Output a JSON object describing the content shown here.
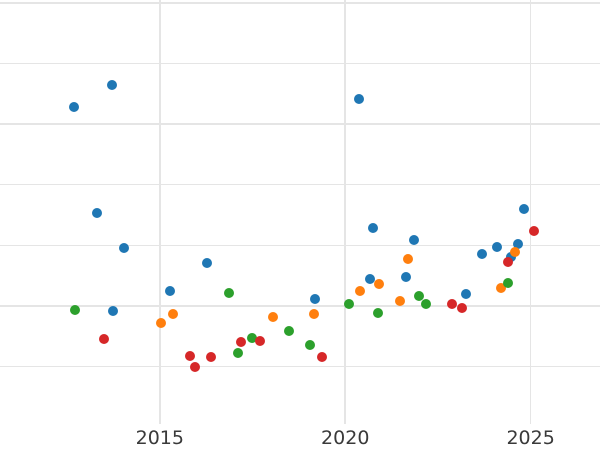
{
  "chart_data": {
    "type": "scatter",
    "title": "",
    "xlabel": "",
    "ylabel": "",
    "grid": true,
    "legend": "none",
    "xlim": [
      2010.69,
      2026.87
    ],
    "ylim": [
      -0.95,
      6.05
    ],
    "y_gridlines": [
      0,
      1,
      2,
      3,
      4,
      5,
      6
    ],
    "y_tick_labels": [],
    "x_ticks": [
      {
        "label": "2015",
        "value": 2015
      },
      {
        "label": "2020",
        "value": 2020
      },
      {
        "label": "2025",
        "value": 2025
      }
    ],
    "colors": {
      "gridline": "#e5e5e5",
      "tick_label": "#3a3a3a",
      "background": "#ffffff"
    },
    "series": [
      {
        "name": "blue",
        "color": "#1f77b4",
        "points": [
          [
            2012.69,
            4.29
          ],
          [
            2013.7,
            4.65
          ],
          [
            2013.3,
            2.53
          ],
          [
            2014.03,
            1.95
          ],
          [
            2013.74,
            0.91
          ],
          [
            2015.27,
            1.24
          ],
          [
            2016.28,
            1.7
          ],
          [
            2019.18,
            1.11
          ],
          [
            2020.36,
            4.41
          ],
          [
            2020.75,
            2.29
          ],
          [
            2020.68,
            1.44
          ],
          [
            2021.64,
            1.48
          ],
          [
            2021.85,
            2.09
          ],
          [
            2023.25,
            1.2
          ],
          [
            2023.69,
            1.85
          ],
          [
            2024.1,
            1.97
          ],
          [
            2024.48,
            1.81
          ],
          [
            2024.65,
            2.02
          ],
          [
            2024.82,
            2.6
          ]
        ]
      },
      {
        "name": "orange",
        "color": "#ff7f0e",
        "points": [
          [
            2015.02,
            0.71
          ],
          [
            2015.36,
            0.86
          ],
          [
            2018.04,
            0.82
          ],
          [
            2019.17,
            0.86
          ],
          [
            2020.41,
            1.25
          ],
          [
            2020.92,
            1.36
          ],
          [
            2021.47,
            1.08
          ],
          [
            2021.68,
            1.77
          ],
          [
            2024.2,
            1.3
          ],
          [
            2024.58,
            1.89
          ]
        ]
      },
      {
        "name": "green",
        "color": "#2ca02c",
        "points": [
          [
            2012.72,
            0.93
          ],
          [
            2016.87,
            1.22
          ],
          [
            2017.11,
            0.23
          ],
          [
            2017.49,
            0.47
          ],
          [
            2018.49,
            0.59
          ],
          [
            2019.05,
            0.36
          ],
          [
            2020.11,
            1.03
          ],
          [
            2020.87,
            0.89
          ],
          [
            2021.99,
            1.16
          ],
          [
            2022.17,
            1.03
          ],
          [
            2024.38,
            1.38
          ]
        ]
      },
      {
        "name": "red",
        "color": "#d62728",
        "points": [
          [
            2013.49,
            0.46
          ],
          [
            2015.81,
            0.18
          ],
          [
            2015.94,
            -0.01
          ],
          [
            2016.39,
            0.16
          ],
          [
            2017.2,
            0.41
          ],
          [
            2017.7,
            0.42
          ],
          [
            2019.38,
            0.15
          ],
          [
            2022.87,
            1.03
          ],
          [
            2023.16,
            0.97
          ],
          [
            2024.4,
            1.73
          ],
          [
            2025.09,
            2.24
          ]
        ]
      }
    ]
  }
}
